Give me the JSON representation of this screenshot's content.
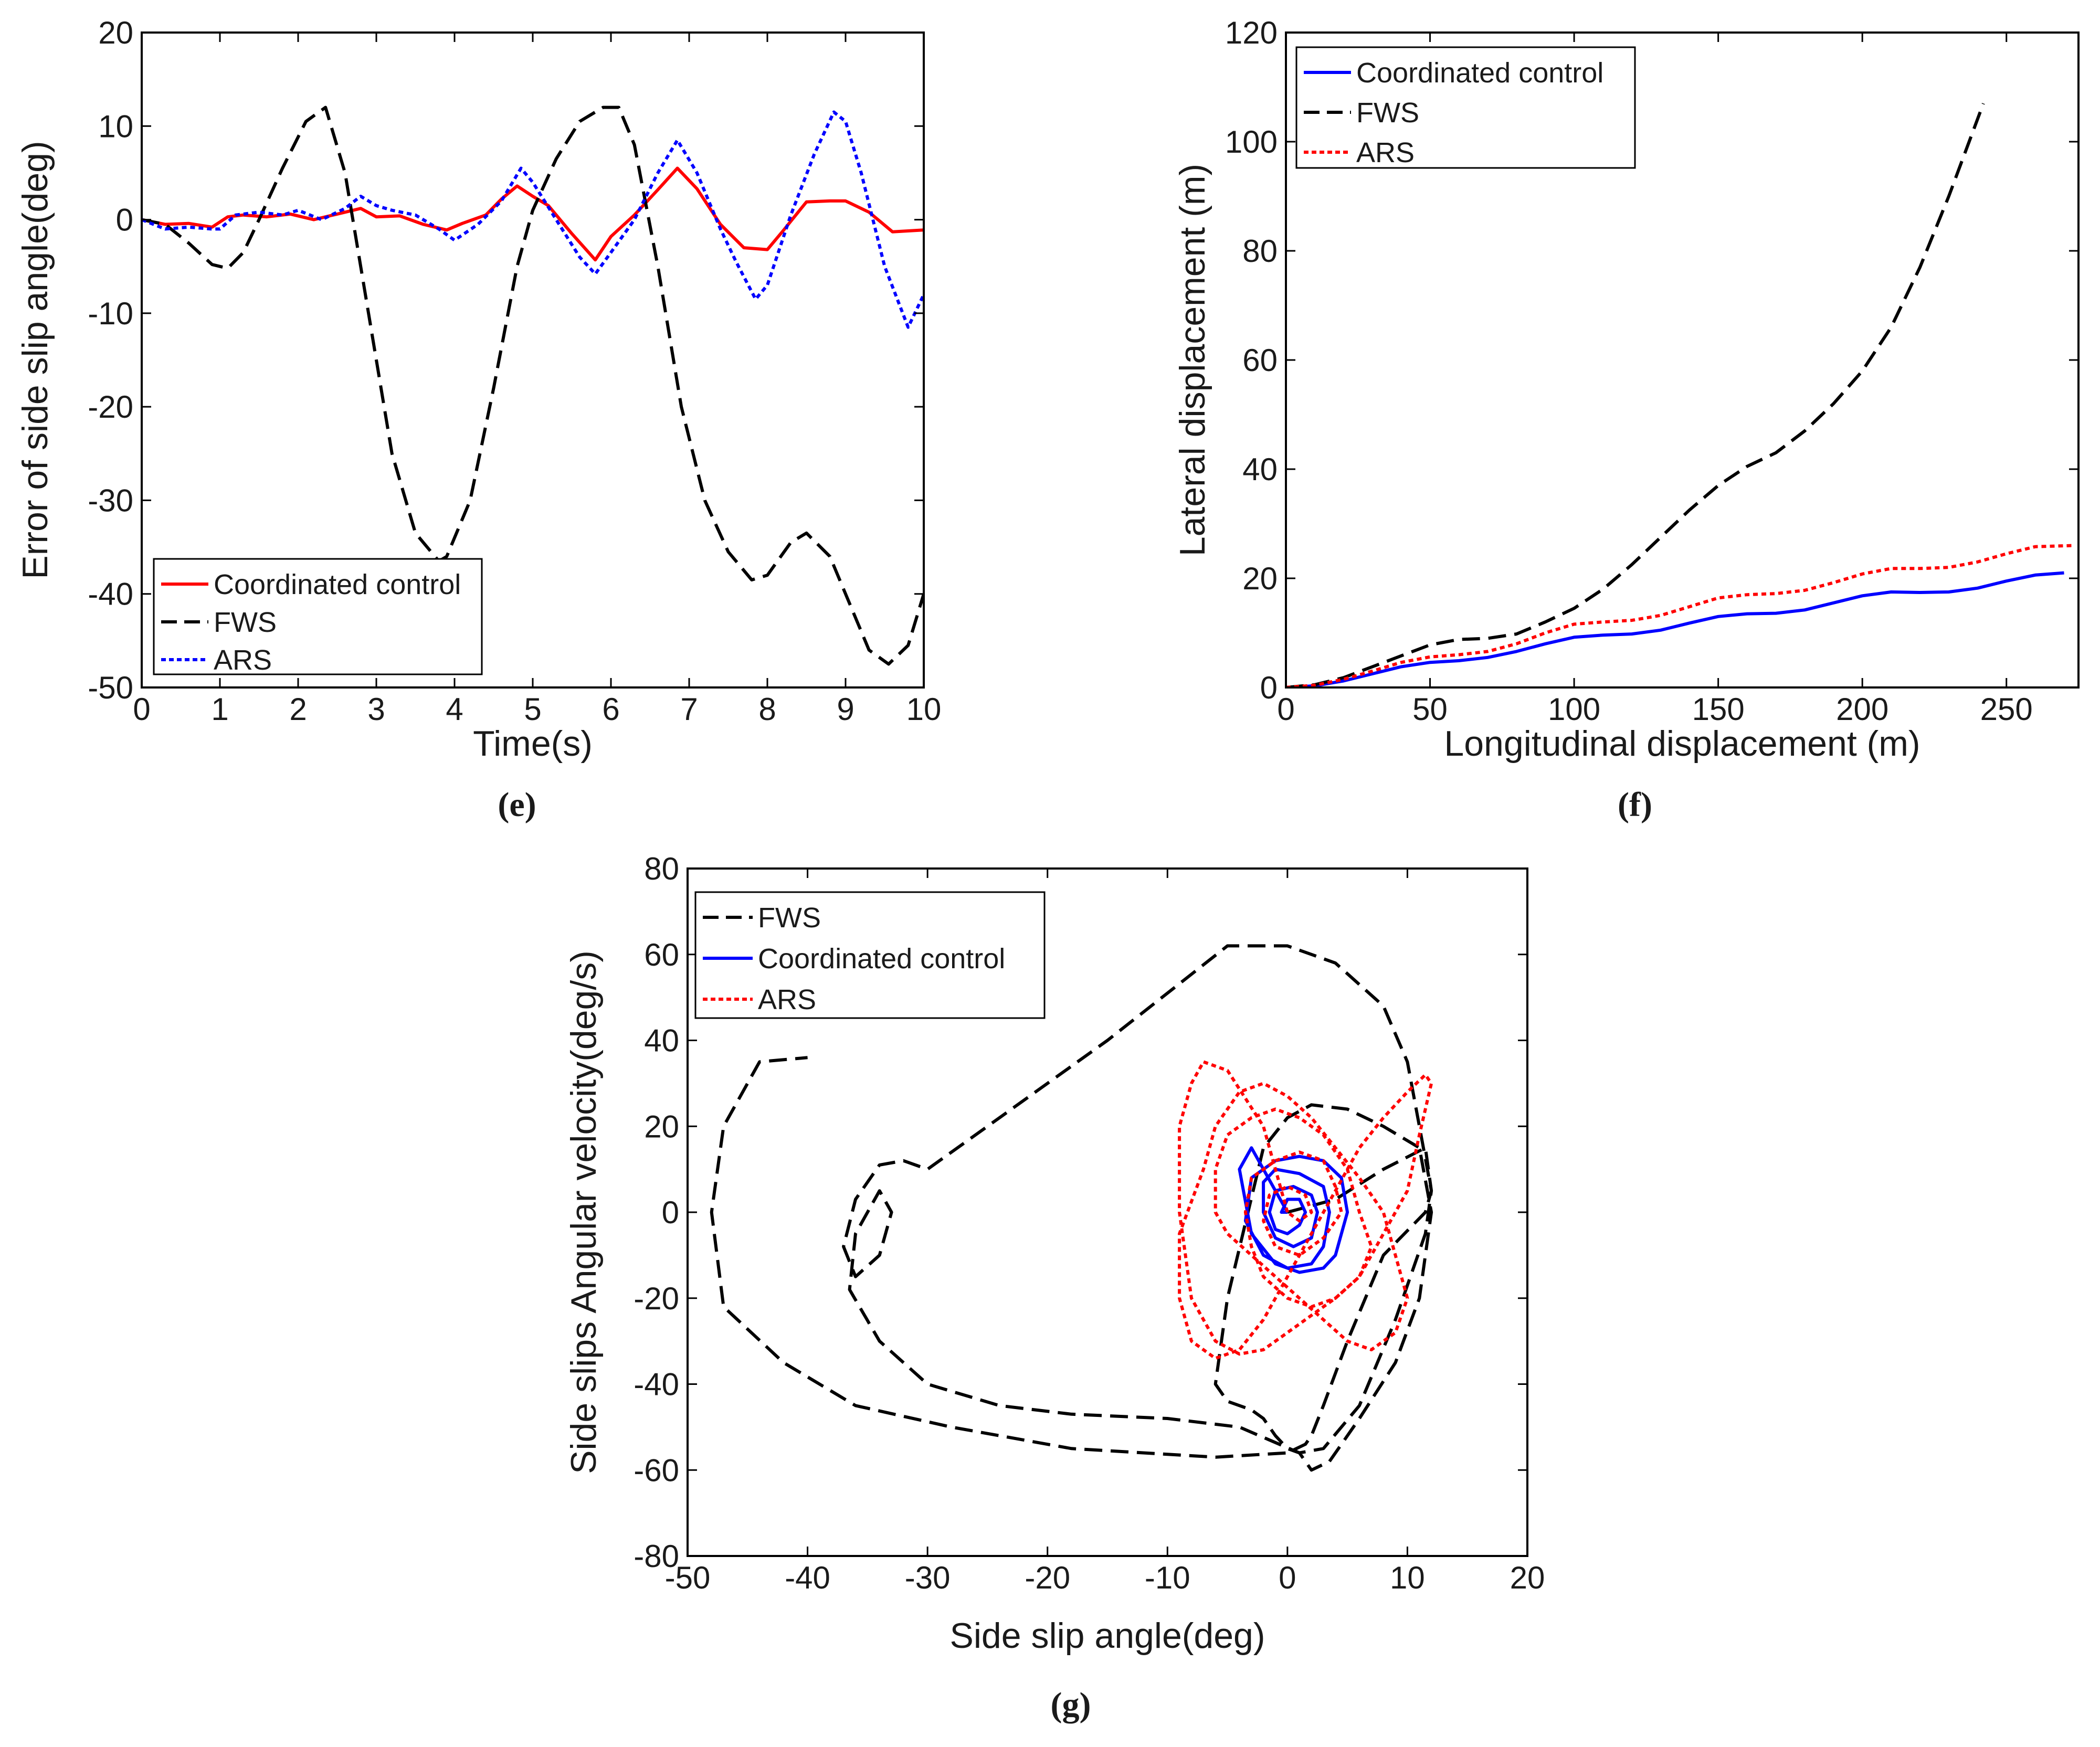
{
  "chart_data": [
    {
      "id": "e",
      "type": "line",
      "caption": "e",
      "xlabel": "Time(s)",
      "ylabel": "Error of side slip angle(deg)",
      "xlim": [
        0,
        10
      ],
      "ylim": [
        -50,
        20
      ],
      "xticks": [
        0,
        1,
        2,
        3,
        4,
        5,
        6,
        7,
        8,
        9,
        10
      ],
      "yticks": [
        20,
        10,
        0,
        -10,
        -20,
        -30,
        -40,
        -50
      ],
      "legend_position": "bottom-left",
      "legend_order": [
        "Coordinated control",
        "FWS",
        "ARS"
      ],
      "series": [
        {
          "name": "Coordinated control",
          "color": "#ff0000",
          "style": "solid",
          "x": [
            0,
            0.3,
            0.6,
            0.9,
            1.1,
            1.3,
            1.6,
            1.9,
            2.2,
            2.5,
            2.8,
            3.0,
            3.3,
            3.6,
            3.9,
            4.1,
            4.4,
            4.6,
            4.8,
            5.0,
            5.2,
            5.5,
            5.8,
            6.0,
            6.3,
            6.6,
            6.85,
            7.1,
            7.4,
            7.7,
            8.0,
            8.2,
            8.5,
            8.8,
            9.0,
            9.3,
            9.6,
            10
          ],
          "y": [
            0,
            -0.5,
            -0.4,
            -0.8,
            0.3,
            0.5,
            0.3,
            0.6,
            0,
            0.6,
            1.2,
            0.3,
            0.4,
            -0.5,
            -1.1,
            -0.4,
            0.5,
            2.2,
            3.6,
            2.5,
            1.5,
            -1.5,
            -4.3,
            -1.8,
            0.5,
            3.2,
            5.5,
            3.3,
            -0.5,
            -3.0,
            -3.2,
            -1.2,
            1.9,
            2.0,
            2.0,
            0.8,
            -1.3,
            -1.1
          ]
        },
        {
          "name": "FWS",
          "color": "#000000",
          "style": "dashed",
          "x": [
            0,
            0.3,
            0.6,
            0.9,
            1.1,
            1.3,
            1.5,
            1.8,
            2.1,
            2.35,
            2.6,
            2.9,
            3.2,
            3.5,
            3.8,
            3.9,
            4.2,
            4.5,
            4.8,
            5.0,
            5.3,
            5.6,
            5.9,
            6.1,
            6.3,
            6.6,
            6.9,
            7.2,
            7.5,
            7.8,
            8.0,
            8.3,
            8.5,
            8.8,
            9.1,
            9.3,
            9.55,
            9.8,
            10
          ],
          "y": [
            0,
            -0.5,
            -2.5,
            -4.8,
            -5.2,
            -3.5,
            0,
            5.5,
            10.5,
            12.0,
            5.0,
            -10.0,
            -25.0,
            -33.5,
            -36.5,
            -36.0,
            -30.0,
            -18.0,
            -5.0,
            1.0,
            6.5,
            10.5,
            12.0,
            12.0,
            8.0,
            -5.0,
            -20.0,
            -30.0,
            -35.5,
            -38.5,
            -38.0,
            -34.5,
            -33.5,
            -36.0,
            -42.0,
            -46.0,
            -47.5,
            -45.5,
            -40.0
          ]
        },
        {
          "name": "ARS",
          "color": "#0000ff",
          "style": "dotted",
          "x": [
            0,
            0.3,
            0.6,
            0.9,
            1.0,
            1.2,
            1.5,
            1.8,
            2.0,
            2.3,
            2.6,
            2.8,
            3.0,
            3.2,
            3.5,
            3.8,
            4.0,
            4.3,
            4.6,
            4.85,
            5.0,
            5.3,
            5.6,
            5.8,
            6.0,
            6.3,
            6.6,
            6.85,
            7.1,
            7.4,
            7.6,
            7.85,
            8.0,
            8.3,
            8.6,
            8.85,
            9.0,
            9.2,
            9.5,
            9.8,
            10
          ],
          "y": [
            0,
            -1.0,
            -0.8,
            -1.0,
            -1.0,
            0.5,
            0.8,
            0.5,
            1.0,
            0,
            1.2,
            2.5,
            1.5,
            1.0,
            0.5,
            -1.0,
            -2.2,
            -0.5,
            2.0,
            5.5,
            4.0,
            0,
            -4.0,
            -5.8,
            -3.5,
            0,
            5.0,
            8.5,
            5.0,
            -1.0,
            -4.5,
            -8.5,
            -7.0,
            0.5,
            7.0,
            11.5,
            10.5,
            5.0,
            -5.0,
            -11.5,
            -8.0
          ]
        }
      ]
    },
    {
      "id": "f",
      "type": "line",
      "caption": "f",
      "xlabel": "Longitudinal displacement (m)",
      "ylabel": "Lateral displacement (m)",
      "xlim": [
        0,
        275
      ],
      "ylim": [
        0,
        120
      ],
      "xticks": [
        0,
        50,
        100,
        150,
        200,
        250
      ],
      "yticks": [
        120,
        100,
        80,
        60,
        40,
        20,
        0
      ],
      "legend_position": "top-left",
      "legend_order": [
        "Coordinated control",
        "FWS",
        "ARS"
      ],
      "series": [
        {
          "name": "Coordinated control",
          "color": "#0000ff",
          "style": "solid",
          "x": [
            0,
            10,
            20,
            30,
            40,
            50,
            60,
            70,
            80,
            90,
            100,
            110,
            120,
            130,
            140,
            150,
            160,
            170,
            180,
            190,
            200,
            210,
            220,
            230,
            240,
            250,
            260,
            270
          ],
          "y": [
            0,
            0.3,
            1.2,
            2.5,
            3.8,
            4.6,
            4.9,
            5.5,
            6.6,
            8.0,
            9.2,
            9.6,
            9.8,
            10.5,
            11.8,
            13.0,
            13.5,
            13.6,
            14.2,
            15.5,
            16.8,
            17.5,
            17.4,
            17.5,
            18.2,
            19.5,
            20.6,
            21.0
          ]
        },
        {
          "name": "FWS",
          "color": "#000000",
          "style": "dashed",
          "x": [
            0,
            10,
            20,
            30,
            40,
            50,
            60,
            70,
            80,
            90,
            100,
            110,
            120,
            130,
            140,
            150,
            160,
            170,
            180,
            190,
            200,
            210,
            220,
            230,
            242
          ],
          "y": [
            0,
            0.5,
            1.8,
            3.8,
            5.8,
            7.8,
            8.8,
            9.0,
            9.8,
            12.0,
            14.5,
            18.0,
            22.5,
            27.5,
            32.5,
            37.0,
            40.5,
            43.0,
            47.0,
            52.0,
            58.0,
            66.0,
            77.0,
            90.0,
            107.0
          ]
        },
        {
          "name": "ARS",
          "color": "#ff0000",
          "style": "dotted",
          "x": [
            0,
            10,
            20,
            30,
            40,
            50,
            60,
            70,
            80,
            90,
            100,
            110,
            120,
            130,
            140,
            150,
            160,
            170,
            180,
            190,
            200,
            210,
            220,
            230,
            240,
            250,
            260,
            273
          ],
          "y": [
            0,
            0.4,
            1.5,
            3.0,
            4.6,
            5.6,
            6.0,
            6.6,
            8.0,
            10.0,
            11.6,
            12.0,
            12.3,
            13.2,
            14.8,
            16.4,
            17.0,
            17.2,
            17.8,
            19.2,
            20.8,
            21.8,
            21.8,
            22.0,
            23.0,
            24.5,
            25.8,
            26.0
          ]
        }
      ]
    },
    {
      "id": "g",
      "type": "line",
      "caption": "g",
      "xlabel": "Side slip angle(deg)",
      "ylabel": "Side slips Angular velocity(deg/s)",
      "xlim": [
        -50,
        20
      ],
      "ylim": [
        -80,
        80
      ],
      "xticks": [
        -50,
        -40,
        -30,
        -20,
        -10,
        0,
        10,
        20
      ],
      "yticks": [
        80,
        60,
        40,
        20,
        0,
        -20,
        -40,
        -60,
        -80
      ],
      "legend_position": "top-left",
      "legend_order": [
        "FWS",
        "Coordinated control",
        "ARS"
      ],
      "series": [
        {
          "name": "FWS",
          "color": "#000000",
          "style": "dashed",
          "x": [
            0,
            4,
            8,
            11.5,
            12,
            11.5,
            9,
            6,
            3,
            1,
            0,
            -1,
            -2,
            -3,
            -4,
            -5,
            -6,
            -5,
            -2,
            0,
            2,
            5,
            8,
            11,
            12,
            11,
            9,
            6,
            3.5,
            2,
            1,
            -4,
            -10,
            -18,
            -24,
            -30,
            -34,
            -36.5,
            -36,
            -34,
            -33,
            -34,
            -36,
            -37,
            -36,
            -34,
            -32,
            -30,
            -25,
            -15,
            -5,
            0,
            4,
            8,
            10,
            11,
            12,
            11.5,
            8,
            5,
            3,
            2,
            1.5,
            0,
            -6,
            -18,
            -28,
            -36,
            -42,
            -47,
            -48,
            -47,
            -44,
            -40
          ],
          "y": [
            0,
            3,
            10,
            15,
            5,
            -5,
            -25,
            -45,
            -55,
            -56,
            -55,
            -52,
            -48,
            -46,
            -45,
            -44,
            -40,
            -20,
            15,
            22,
            25,
            24,
            20,
            15,
            0,
            -20,
            -35,
            -48,
            -58,
            -60,
            -56,
            -50,
            -48,
            -47,
            -45,
            -40,
            -30,
            -18,
            -5,
            5,
            0,
            -10,
            -15,
            -8,
            3,
            11,
            12,
            10,
            20,
            40,
            62,
            62,
            58,
            48,
            35,
            20,
            5,
            0,
            -10,
            -30,
            -45,
            -52,
            -54,
            -56,
            -57,
            -55,
            -50,
            -45,
            -35,
            -22,
            0,
            20,
            35,
            36
          ]
        },
        {
          "name": "Coordinated control",
          "color": "#0000ff",
          "style": "solid",
          "x": [
            0,
            -1,
            -3,
            -4,
            -3,
            -1,
            1,
            3,
            4,
            5,
            4.5,
            3,
            1,
            -1,
            -3,
            -3.5,
            -2,
            0,
            2,
            3,
            3.5,
            3,
            1,
            -1,
            -2,
            -2,
            -1,
            0.5,
            2,
            2.5,
            2,
            0.5,
            -1,
            -1.5,
            -1,
            0,
            1,
            1.5,
            1,
            0,
            -0.5,
            0
          ],
          "y": [
            0,
            5,
            15,
            10,
            -5,
            -12,
            -14,
            -13,
            -10,
            0,
            8,
            12,
            13,
            12,
            8,
            -2,
            -10,
            -13,
            -12,
            -8,
            0,
            6,
            9,
            10,
            7,
            0,
            -6,
            -8,
            -6,
            0,
            4,
            6,
            5,
            0,
            -4,
            -5,
            -3,
            0,
            3,
            3,
            0,
            0
          ]
        },
        {
          "name": "ARS",
          "color": "#ff0000",
          "style": "dotted",
          "x": [
            0,
            -2,
            -5,
            -7,
            -8,
            -9,
            -9,
            -8,
            -6,
            -4,
            -2,
            0,
            2,
            4,
            6,
            8,
            10,
            11,
            12,
            11.5,
            10,
            8,
            6,
            4,
            2,
            0,
            -2,
            -4,
            -6,
            -8,
            -9,
            -9,
            -7,
            -6,
            -4,
            -2,
            0,
            2,
            4,
            6,
            8,
            9,
            10,
            9,
            7,
            5,
            3,
            1,
            -1,
            -3,
            -5,
            -6,
            -6,
            -5,
            -3,
            -1,
            1,
            3,
            5,
            6,
            7,
            6,
            4,
            2,
            0,
            -2,
            -3,
            -3.5,
            -3,
            -1,
            1,
            3,
            4,
            4.5,
            3,
            1,
            -1,
            -2,
            -1.5,
            0,
            1.5,
            2,
            1,
            0
          ],
          "y": [
            0,
            20,
            33,
            35,
            30,
            20,
            0,
            -20,
            -30,
            -33,
            -32,
            -28,
            -24,
            -20,
            -15,
            -5,
            5,
            18,
            30,
            32,
            28,
            22,
            15,
            5,
            -5,
            -15,
            -25,
            -32,
            -34,
            -30,
            -20,
            -5,
            10,
            20,
            28,
            30,
            27,
            22,
            15,
            8,
            0,
            -10,
            -20,
            -28,
            -32,
            -30,
            -25,
            -20,
            -15,
            -10,
            -5,
            0,
            10,
            18,
            22,
            24,
            22,
            18,
            10,
            0,
            -8,
            -15,
            -20,
            -22,
            -20,
            -15,
            -8,
            0,
            8,
            12,
            14,
            12,
            6,
            0,
            -6,
            -10,
            -8,
            -2,
            4,
            6,
            4,
            0,
            -2,
            0
          ]
        }
      ]
    }
  ]
}
